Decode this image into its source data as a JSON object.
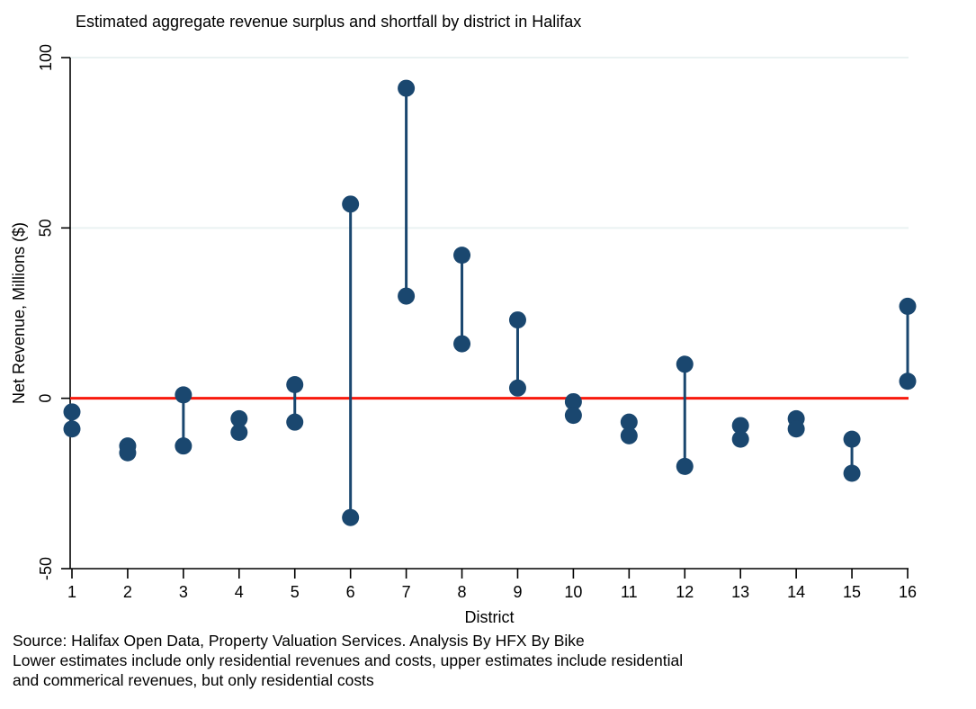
{
  "title": "Estimated aggregate revenue surplus and shortfall by district in Halifax",
  "footnote": {
    "lines": [
      "Source: Halifax Open Data, Property Valuation Services. Analysis By HFX By Bike",
      "Lower estimates include only residential revenues and costs, upper estimates include residential",
      "and commerical revenues, but only residential costs"
    ]
  },
  "chart_data": {
    "type": "scatter",
    "subtype": "vertical-range-dumbbell",
    "title": "Estimated aggregate revenue surplus and shortfall by district in Halifax",
    "xlabel": "District",
    "ylabel": "Net Revenue, Millions ($)",
    "categories": [
      "1",
      "2",
      "3",
      "4",
      "5",
      "6",
      "7",
      "8",
      "9",
      "10",
      "11",
      "12",
      "13",
      "14",
      "15",
      "16"
    ],
    "series": [
      {
        "name": "upper_estimate",
        "values": [
          -4,
          -14,
          1,
          -6,
          4,
          57,
          91,
          42,
          23,
          -1,
          -7,
          10,
          -8,
          -6,
          -12,
          27
        ]
      },
      {
        "name": "lower_estimate",
        "values": [
          -9,
          -16,
          -14,
          -10,
          -7,
          -35,
          30,
          16,
          3,
          -5,
          -11,
          -20,
          -12,
          -9,
          -22,
          5
        ]
      }
    ],
    "ylim": [
      -50,
      100
    ],
    "yticks": [
      -50,
      0,
      50,
      100
    ],
    "gridline_yvalues": [
      50,
      100
    ],
    "zero_reference_line": 0,
    "legend": "none",
    "grid": "horizontal-light",
    "colors": {
      "marker": "#1a476f",
      "connector": "#1a476f",
      "zero_line": "#f8190d",
      "gridline": "#eaf2f2",
      "axis": "#000000",
      "text": "#000000",
      "background": "#ffffff"
    }
  }
}
